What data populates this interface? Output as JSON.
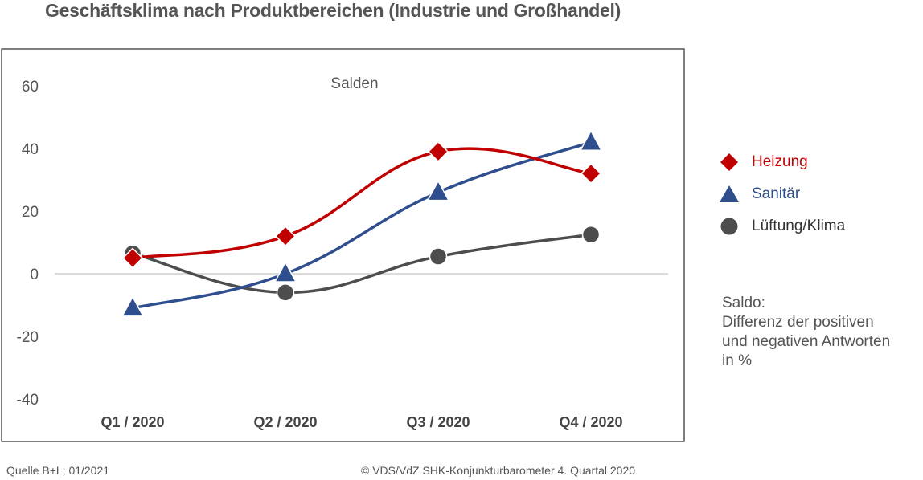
{
  "header": {
    "title": "Geschäftsklima nach Produktbereichen (Industrie und Großhandel)"
  },
  "chart_data": {
    "type": "line",
    "title": "Geschäftsklima nach Produktbereichen (Industrie und Großhandel)",
    "subtitle": "Salden",
    "categories": [
      "Q1 / 2020",
      "Q2 / 2020",
      "Q3 / 2020",
      "Q4 / 2020"
    ],
    "ylim": [
      -40,
      60
    ],
    "yticks": [
      "60",
      "40",
      "20",
      "0",
      "-20",
      "-40"
    ],
    "ytick_values": [
      60,
      40,
      20,
      0,
      -20,
      -40
    ],
    "grid": "zero line only",
    "legend_position": "right",
    "series": [
      {
        "name": "Heizung",
        "values": [
          5,
          12,
          39,
          32
        ],
        "color": "#c00000",
        "marker": "diamond"
      },
      {
        "name": "Sanitär",
        "values": [
          -11,
          0,
          26,
          42
        ],
        "color": "#2e4e8e",
        "marker": "triangle"
      },
      {
        "name": "Lüftung/Klima",
        "values": [
          6.5,
          -6,
          5.5,
          12.5
        ],
        "color": "#4d4d4d",
        "marker": "circle"
      }
    ]
  },
  "note": {
    "line1": "Saldo:",
    "line2": "Differenz der positiven",
    "line3": "und negativen Antworten",
    "line4": "in %"
  },
  "footer": {
    "source": "Quelle B+L; 01/2021",
    "copyright": "© VDS/VdZ SHK-Konjunkturbarometer 4. Quartal 2020"
  }
}
